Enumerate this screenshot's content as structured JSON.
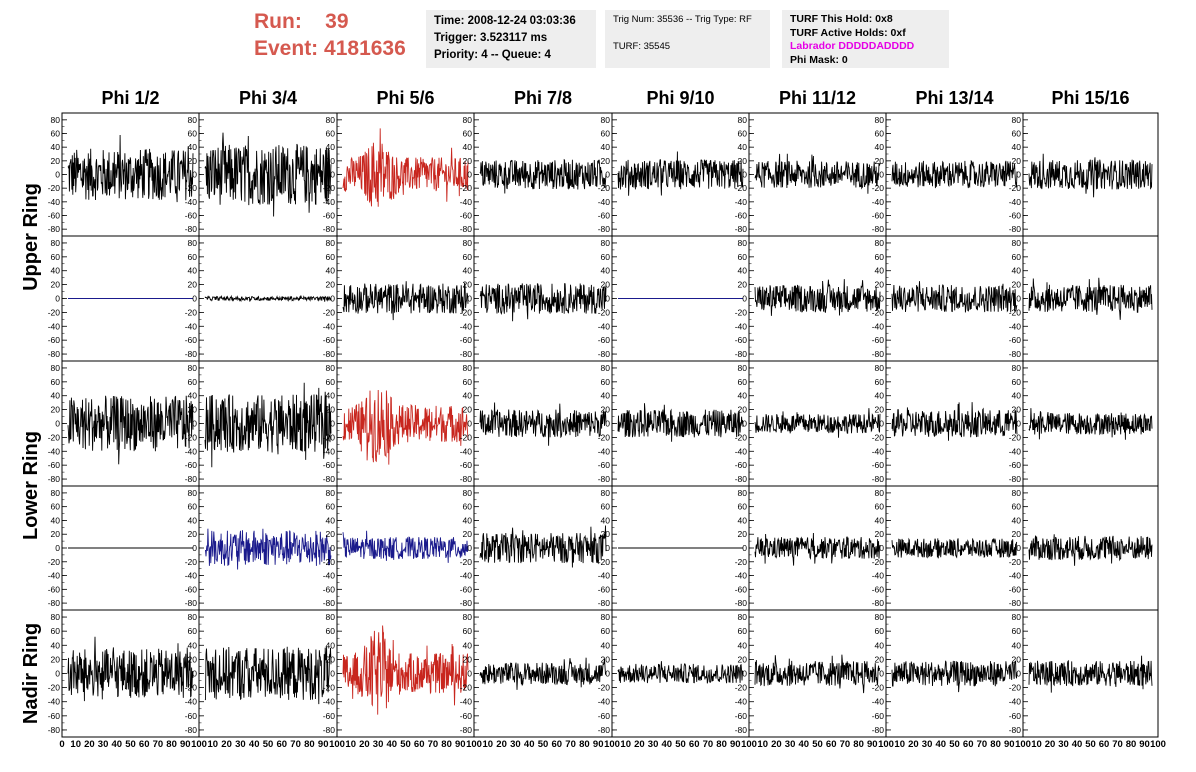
{
  "header": {
    "run_label": "Run:",
    "run_value": "39",
    "event_label": "Event:",
    "event_value": "4181636"
  },
  "info_time": {
    "time": "Time: 2008-12-24 03:03:36",
    "trigger": "Trigger: 3.523117 ms",
    "priority": "Priority: 4 -- Queue: 4"
  },
  "info_trig": {
    "trig": "Trig Num: 35536 -- Trig Type: RF",
    "turf": "TURF: 35545"
  },
  "info_turf": {
    "this_hold": "TURF This Hold: 0x8",
    "active_holds": "TURF Active Holds: 0xf",
    "labrador": "Labrador DDDDDADDDD",
    "phi_mask": "Phi Mask: 0"
  },
  "colors": {
    "red_highlight": "#c8261e",
    "blue_highlight": "#1a1a8c",
    "normal_trace": "#000000",
    "header_red": "#d5594f",
    "labrador_magenta": "#e600e6"
  },
  "chart_data": {
    "type": "line",
    "phi_labels": [
      "Phi 1/2",
      "Phi 3/4",
      "Phi 5/6",
      "Phi 7/8",
      "Phi 9/10",
      "Phi 11/12",
      "Phi 13/14",
      "Phi 15/16"
    ],
    "ring_labels": [
      "Upper Ring",
      "Lower Ring",
      "Nadir Ring"
    ],
    "y_ticks": [
      -80,
      -60,
      -40,
      -20,
      0,
      20,
      40,
      60,
      80
    ],
    "ylim": [
      -90,
      90
    ],
    "x_tick_labels": [
      "0",
      "10",
      "20",
      "30",
      "40",
      "50",
      "60",
      "70",
      "80",
      "90",
      "100"
    ],
    "xlim": [
      0,
      100
    ],
    "rows": [
      {
        "ring": "Upper Ring",
        "panels": [
          {
            "color": "black",
            "amp": 38,
            "flat": false
          },
          {
            "color": "black",
            "amp": 45,
            "flat": false
          },
          {
            "color": "red",
            "amp": 28,
            "flat": false,
            "burst": true
          },
          {
            "color": "black",
            "amp": 22,
            "flat": false
          },
          {
            "color": "black",
            "amp": 22,
            "flat": false
          },
          {
            "color": "black",
            "amp": 20,
            "flat": false
          },
          {
            "color": "black",
            "amp": 20,
            "flat": false
          },
          {
            "color": "black",
            "amp": 22,
            "flat": false
          }
        ]
      },
      {
        "ring": "Upper Ring",
        "panels": [
          {
            "color": "blue",
            "amp": 0,
            "flat": true
          },
          {
            "color": "black",
            "amp": 3,
            "flat": false
          },
          {
            "color": "black",
            "amp": 22,
            "flat": false
          },
          {
            "color": "black",
            "amp": 22,
            "flat": false
          },
          {
            "color": "blue",
            "amp": 0,
            "flat": true
          },
          {
            "color": "black",
            "amp": 20,
            "flat": false
          },
          {
            "color": "black",
            "amp": 20,
            "flat": false
          },
          {
            "color": "black",
            "amp": 20,
            "flat": false
          }
        ]
      },
      {
        "ring": "Lower Ring",
        "panels": [
          {
            "color": "black",
            "amp": 40,
            "flat": false
          },
          {
            "color": "black",
            "amp": 42,
            "flat": false
          },
          {
            "color": "red",
            "amp": 30,
            "flat": false,
            "burst": true
          },
          {
            "color": "black",
            "amp": 20,
            "flat": false
          },
          {
            "color": "black",
            "amp": 20,
            "flat": false
          },
          {
            "color": "black",
            "amp": 14,
            "flat": false
          },
          {
            "color": "black",
            "amp": 20,
            "flat": false
          },
          {
            "color": "black",
            "amp": 16,
            "flat": false
          }
        ]
      },
      {
        "ring": "Lower Ring",
        "panels": [
          {
            "color": "black",
            "amp": 0,
            "flat": true
          },
          {
            "color": "blue",
            "amp": 26,
            "flat": false
          },
          {
            "color": "blue",
            "amp": 16,
            "flat": false
          },
          {
            "color": "black",
            "amp": 22,
            "flat": false
          },
          {
            "color": "black",
            "amp": 0,
            "flat": true
          },
          {
            "color": "black",
            "amp": 16,
            "flat": false
          },
          {
            "color": "black",
            "amp": 14,
            "flat": false
          },
          {
            "color": "black",
            "amp": 18,
            "flat": false
          }
        ]
      },
      {
        "ring": "Nadir Ring",
        "panels": [
          {
            "color": "black",
            "amp": 35,
            "flat": false
          },
          {
            "color": "black",
            "amp": 38,
            "flat": false
          },
          {
            "color": "red",
            "amp": 32,
            "flat": false,
            "burst": true
          },
          {
            "color": "black",
            "amp": 16,
            "flat": false
          },
          {
            "color": "black",
            "amp": 14,
            "flat": false
          },
          {
            "color": "black",
            "amp": 18,
            "flat": false
          },
          {
            "color": "black",
            "amp": 18,
            "flat": false
          },
          {
            "color": "black",
            "amp": 18,
            "flat": false
          }
        ]
      }
    ]
  }
}
